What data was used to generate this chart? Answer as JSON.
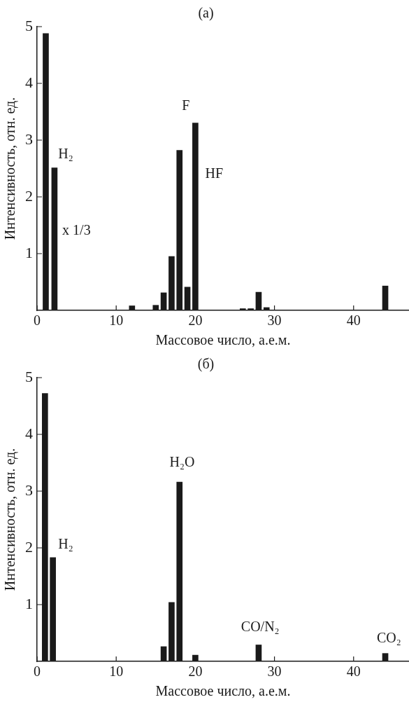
{
  "chart_data": [
    {
      "type": "bar",
      "title": "(a)",
      "xlabel": "Массовое число, а.е.м.",
      "ylabel": "Интенсивность, отн. ед.",
      "x": [
        1.1,
        2.2,
        12,
        15,
        16,
        17,
        18,
        19,
        20,
        26,
        27,
        28,
        29,
        44
      ],
      "values": [
        4.88,
        2.51,
        0.08,
        0.09,
        0.31,
        0.95,
        2.82,
        0.41,
        3.3,
        0.03,
        0.03,
        0.32,
        0.05,
        0.43
      ],
      "color": "#1a1a1a",
      "xlim": [
        0,
        47
      ],
      "ylim": [
        0,
        5
      ],
      "xticks": [
        0,
        10,
        20,
        30,
        40
      ],
      "yticks": [
        1,
        2,
        3,
        4,
        5
      ],
      "annotations": [
        "H₂",
        "x 1/3",
        "F",
        "HF"
      ]
    },
    {
      "type": "bar",
      "title": "(б)",
      "xlabel": "Массовое число, а.е.м.",
      "ylabel": "Интенсивность, отн. ед.",
      "x": [
        1,
        2,
        16,
        17,
        18,
        20,
        28,
        44
      ],
      "values": [
        4.72,
        1.83,
        0.26,
        1.04,
        3.16,
        0.11,
        0.29,
        0.14
      ],
      "color": "#1a1a1a",
      "xlim": [
        0,
        47
      ],
      "ylim": [
        0,
        5
      ],
      "xticks": [
        0,
        10,
        20,
        30,
        40
      ],
      "yticks": [
        1,
        2,
        3,
        4,
        5
      ],
      "annotations": [
        "H₂",
        "H₂O",
        "CO/N₂",
        "CO₂"
      ]
    }
  ]
}
